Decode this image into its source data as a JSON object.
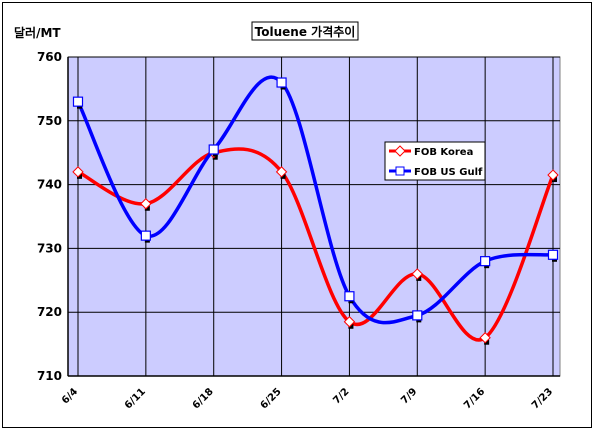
{
  "chart_data": {
    "type": "line",
    "title": "Toluene 가격추이",
    "ylabel": "달러/MT",
    "xlabel": "",
    "categories": [
      "6/4",
      "6/11",
      "6/18",
      "6/25",
      "7/2",
      "7/9",
      "7/16",
      "7/23"
    ],
    "ylim": [
      710,
      760
    ],
    "yticks": [
      710,
      720,
      730,
      740,
      750,
      760
    ],
    "grid": true,
    "legend_position": "right",
    "series": [
      {
        "name": "FOB Korea",
        "color": "#ff0000",
        "marker": "diamond",
        "values": [
          742,
          737,
          745,
          742,
          718.5,
          726,
          716,
          741.5
        ]
      },
      {
        "name": "FOB US Gulf",
        "color": "#0000ff",
        "marker": "square",
        "values": [
          753,
          732,
          745.5,
          756,
          722.5,
          719.5,
          728,
          729
        ]
      }
    ],
    "plot_background": "#ccccff"
  }
}
